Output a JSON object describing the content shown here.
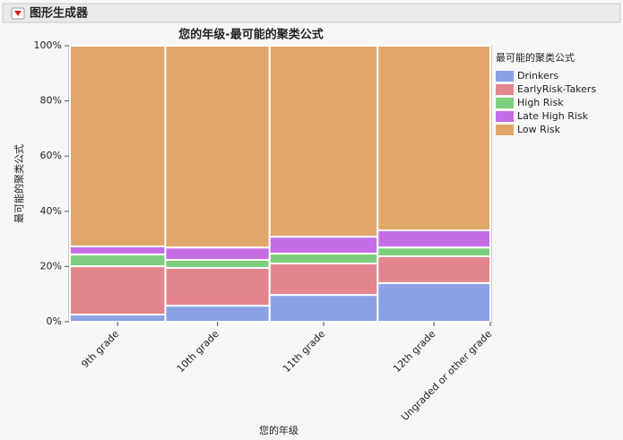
{
  "header": {
    "title": "图形生成器"
  },
  "chart_data": {
    "type": "mosaic",
    "title": "您的年级-最可能的聚类公式",
    "x_label": "您的年级",
    "y_label": "最可能的聚类公式",
    "legend_title": "最可能的聚类公式",
    "categories": [
      "9th grade",
      "10th grade",
      "11th grade",
      "12th grade",
      "Ungraded or other grade"
    ],
    "widths": [
      22.7,
      24.8,
      25.7,
      26.8,
      0
    ],
    "series": [
      {
        "name": "Drinkers",
        "color": "#8aa2e4",
        "values": [
          2.6,
          5.8,
          9.7,
          14.0,
          null
        ]
      },
      {
        "name": "EarlyRisk-Takers",
        "color": "#e3858f",
        "values": [
          17.5,
          13.7,
          11.4,
          9.7,
          null
        ]
      },
      {
        "name": "High Risk",
        "color": "#7dce7f",
        "values": [
          4.3,
          2.9,
          3.6,
          3.2,
          null
        ]
      },
      {
        "name": "Late High Risk",
        "color": "#c46de6",
        "values": [
          2.9,
          4.5,
          6.1,
          6.2,
          null
        ]
      },
      {
        "name": "Low Risk",
        "color": "#e2a66b",
        "values": [
          72.7,
          73.1,
          69.2,
          66.9,
          null
        ]
      }
    ],
    "ylim": [
      0,
      100
    ],
    "yticks": [
      {
        "value": 0,
        "label": "0%"
      },
      {
        "value": 20,
        "label": "20%"
      },
      {
        "value": 40,
        "label": "40%"
      },
      {
        "value": 60,
        "label": "60%"
      },
      {
        "value": 80,
        "label": "80%"
      },
      {
        "value": 100,
        "label": "100%"
      }
    ],
    "legend": "right"
  }
}
